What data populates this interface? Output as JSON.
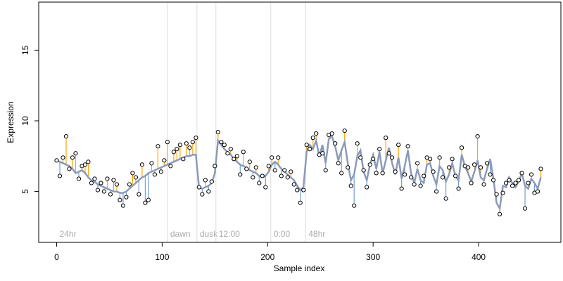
{
  "chart_data": {
    "type": "scatter",
    "xlabel": "Sample index",
    "ylabel": "Expression",
    "xlim": [
      -17,
      478
    ],
    "ylim": [
      1.4,
      18.4
    ],
    "xticks": [
      0,
      100,
      200,
      300,
      400
    ],
    "yticks": [
      5,
      10,
      15
    ],
    "residual_colors": {
      "above": "#ffa500",
      "below": "#6f9fd8"
    },
    "annotations": [
      {
        "label": "24hr",
        "x": 0,
        "line": false
      },
      {
        "label": "dawn",
        "x": 105,
        "line": true
      },
      {
        "label": "dusk",
        "x": 133,
        "line": true
      },
      {
        "label": "12:00",
        "x": 151,
        "line": true
      },
      {
        "label": "0:00",
        "x": 203,
        "line": true
      },
      {
        "label": "48hr",
        "x": 236,
        "line": true
      }
    ],
    "x": [
      0,
      3,
      6,
      9,
      12,
      15,
      18,
      21,
      24,
      27,
      30,
      33,
      36,
      39,
      42,
      45,
      48,
      51,
      54,
      57,
      60,
      63,
      66,
      69,
      72,
      75,
      78,
      81,
      84,
      87,
      90,
      93,
      96,
      99,
      102,
      105,
      108,
      111,
      114,
      117,
      120,
      123,
      126,
      129,
      132,
      135,
      138,
      141,
      144,
      147,
      150,
      153,
      156,
      159,
      162,
      165,
      168,
      171,
      174,
      177,
      180,
      183,
      186,
      189,
      192,
      195,
      198,
      201,
      204,
      207,
      210,
      213,
      216,
      219,
      222,
      225,
      228,
      231,
      234,
      237,
      240,
      243,
      246,
      249,
      252,
      255,
      258,
      261,
      264,
      267,
      270,
      273,
      276,
      279,
      282,
      285,
      288,
      291,
      294,
      297,
      300,
      303,
      306,
      309,
      312,
      315,
      318,
      321,
      324,
      327,
      330,
      333,
      336,
      339,
      342,
      345,
      348,
      351,
      354,
      357,
      360,
      363,
      366,
      369,
      372,
      375,
      378,
      381,
      384,
      387,
      390,
      393,
      396,
      399,
      402,
      405,
      408,
      411,
      414,
      417,
      420,
      423,
      426,
      429,
      432,
      435,
      438,
      441,
      444,
      447,
      450,
      453,
      456,
      459
    ],
    "series": [
      {
        "kind": "line",
        "color": "#8c9ab8",
        "values": [
          7.2,
          7.1,
          7.0,
          6.9,
          6.8,
          6.6,
          6.3,
          6.4,
          6.5,
          6.3,
          6.0,
          5.8,
          5.7,
          5.5,
          5.4,
          5.3,
          5.2,
          5.1,
          5.0,
          5.0,
          4.9,
          4.9,
          5.0,
          5.2,
          5.4,
          5.6,
          5.8,
          6.0,
          6.1,
          6.3,
          6.4,
          6.5,
          6.6,
          6.7,
          6.8,
          6.9,
          7.0,
          7.1,
          7.2,
          7.3,
          7.4,
          7.5,
          7.5,
          7.6,
          7.6,
          5.3,
          5.2,
          5.3,
          5.4,
          5.6,
          6.3,
          8.6,
          8.3,
          8.0,
          7.8,
          7.6,
          7.3,
          7.1,
          6.9,
          6.8,
          6.7,
          6.5,
          6.4,
          6.3,
          6.1,
          6.0,
          6.1,
          6.4,
          6.9,
          7.1,
          6.9,
          6.6,
          6.4,
          6.2,
          6.0,
          5.8,
          5.4,
          5.1,
          5.3,
          7.8,
          8.3,
          8.0,
          8.6,
          7.5,
          8.3,
          7.0,
          8.7,
          8.9,
          8.2,
          7.2,
          7.9,
          8.5,
          7.0,
          5.8,
          6.2,
          7.5,
          7.9,
          6.4,
          5.8,
          6.9,
          7.6,
          6.6,
          7.8,
          6.3,
          7.2,
          8.1,
          7.0,
          6.2,
          7.4,
          5.9,
          6.8,
          7.9,
          6.3,
          5.6,
          6.6,
          5.8,
          5.6,
          6.9,
          7.0,
          6.1,
          5.5,
          6.8,
          6.5,
          5.7,
          6.2,
          7.0,
          6.1,
          5.8,
          7.6,
          6.8,
          6.3,
          5.7,
          6.4,
          7.2,
          6.0,
          5.8,
          6.6,
          7.3,
          5.9,
          4.2,
          3.8,
          5.4,
          5.3,
          6.0,
          5.6,
          5.3,
          5.7,
          6.3,
          5.4,
          5.2,
          5.9,
          5.6,
          5.2,
          6.0
        ]
      },
      {
        "kind": "points",
        "color": "#000000",
        "values": [
          7.2,
          6.1,
          7.4,
          8.9,
          6.6,
          7.4,
          7.7,
          5.9,
          6.8,
          6.9,
          7.1,
          5.6,
          5.9,
          5.1,
          5.6,
          5.0,
          5.9,
          4.8,
          5.8,
          5.5,
          4.4,
          4.0,
          4.6,
          5.5,
          6.3,
          6.0,
          4.8,
          6.9,
          4.2,
          4.4,
          7.0,
          6.2,
          8.2,
          6.4,
          7.2,
          8.5,
          6.8,
          7.8,
          8.0,
          8.3,
          7.3,
          8.4,
          8.1,
          8.5,
          8.8,
          5.3,
          4.8,
          5.8,
          5.0,
          5.7,
          6.8,
          9.2,
          8.5,
          8.3,
          7.7,
          8.0,
          7.3,
          7.5,
          6.2,
          7.8,
          6.6,
          7.1,
          6.0,
          6.7,
          5.6,
          6.1,
          5.3,
          6.8,
          7.4,
          6.5,
          7.4,
          6.1,
          6.5,
          6.0,
          6.4,
          5.5,
          5.1,
          4.2,
          5.1,
          8.3,
          8.0,
          8.8,
          9.1,
          7.6,
          7.7,
          6.5,
          9.0,
          9.1,
          8.4,
          7.0,
          6.3,
          9.3,
          6.7,
          5.4,
          4.0,
          8.4,
          7.4,
          6.5,
          5.3,
          6.9,
          7.3,
          6.3,
          8.0,
          6.3,
          8.8,
          7.7,
          7.4,
          6.4,
          8.3,
          5.2,
          6.2,
          8.2,
          6.0,
          5.5,
          7.0,
          5.4,
          6.1,
          7.4,
          7.3,
          6.4,
          5.0,
          7.4,
          6.0,
          4.5,
          6.7,
          7.3,
          6.1,
          5.2,
          8.1,
          6.8,
          6.7,
          5.6,
          6.9,
          8.9,
          6.7,
          5.5,
          7.0,
          6.2,
          5.8,
          4.8,
          3.4,
          4.9,
          5.6,
          5.8,
          5.4,
          5.6,
          5.8,
          6.3,
          3.8,
          5.6,
          6.2,
          4.9,
          5.0,
          6.6
        ]
      }
    ]
  }
}
